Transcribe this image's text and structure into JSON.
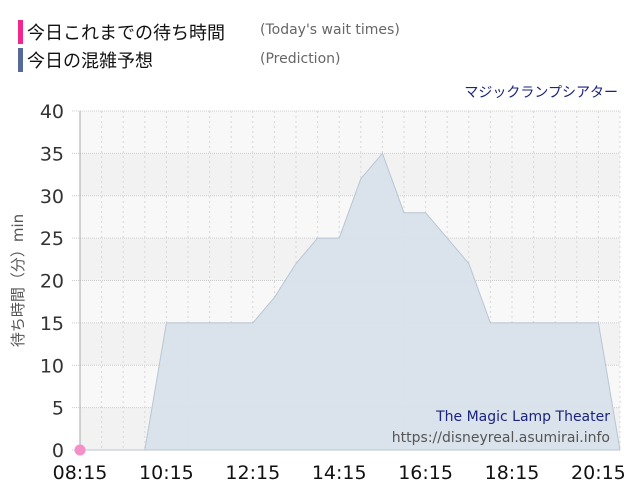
{
  "legend": [
    {
      "label_jp": "今日これまでの待ち時間",
      "label_en": "(Today's wait times)",
      "color": "#f0288c"
    },
    {
      "label_jp": "今日の混雑予想",
      "label_en": "(Prediction)",
      "color": "#566a9a"
    }
  ],
  "attraction_jp": "マジックランプシアター",
  "chart_data": {
    "type": "area",
    "ylabel": "待ち時間（分）min",
    "ylim": [
      0,
      40
    ],
    "yticks": [
      0,
      5,
      10,
      15,
      20,
      25,
      30,
      35,
      40
    ],
    "xlim": [
      "08:15",
      "20:45"
    ],
    "xticks": [
      "08:15",
      "10:15",
      "12:15",
      "14:15",
      "16:15",
      "18:15",
      "20:15"
    ],
    "grid": true,
    "series": [
      {
        "name": "今日の混雑予想",
        "color": "#d8e2ea",
        "x": [
          "08:15",
          "08:45",
          "09:15",
          "09:45",
          "10:15",
          "10:45",
          "11:15",
          "11:45",
          "12:15",
          "12:45",
          "13:15",
          "13:45",
          "14:15",
          "14:45",
          "15:15",
          "15:45",
          "16:15",
          "16:45",
          "17:15",
          "17:45",
          "18:15",
          "18:45",
          "19:15",
          "19:45",
          "20:15",
          "20:45"
        ],
        "values": [
          0,
          0,
          0,
          0,
          15,
          15,
          15,
          15,
          15,
          18,
          22,
          25,
          25,
          32,
          35,
          28,
          28,
          25,
          22,
          15,
          15,
          15,
          15,
          15,
          15,
          0
        ]
      },
      {
        "name": "今日これまでの待ち時間",
        "color": "#f48fc8",
        "x": [
          "08:15"
        ],
        "values": [
          0
        ]
      }
    ],
    "annotations": [
      "The Magic Lamp Theater",
      "https://disneyreal.asumirai.info"
    ]
  }
}
